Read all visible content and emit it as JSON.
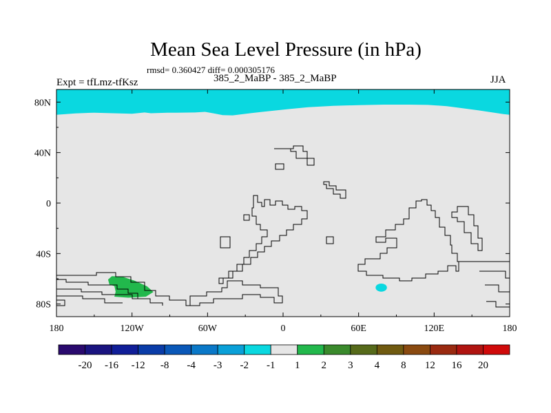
{
  "header": {
    "title": "Mean Sea Level Pressure (in hPa)",
    "stats": "rmsd= 0.360427 diff= 0.000305176",
    "experiment": "Expt = tfLmz-tfKsz",
    "subtitle": "385_2_MaBP - 385_2_MaBP",
    "season": "JJA"
  },
  "chart_data": {
    "type": "heatmap",
    "title": "Mean Sea Level Pressure (in hPa)",
    "subtitle": "385_2_MaBP - 385_2_MaBP",
    "experiment": "Expt = tfLmz-tfKsz",
    "season": "JJA",
    "rmsd": 0.360427,
    "diff": 0.000305176,
    "xlim": [
      -180,
      180
    ],
    "ylim": [
      -90,
      90
    ],
    "x_ticks": [
      {
        "value": -180,
        "label": "180"
      },
      {
        "value": -120,
        "label": "120W"
      },
      {
        "value": -60,
        "label": "60W"
      },
      {
        "value": 0,
        "label": "0"
      },
      {
        "value": 60,
        "label": "60E"
      },
      {
        "value": 120,
        "label": "120E"
      },
      {
        "value": 180,
        "label": "180"
      }
    ],
    "y_ticks": [
      {
        "value": 80,
        "label": "80N"
      },
      {
        "value": 40,
        "label": "40N"
      },
      {
        "value": 0,
        "label": "0"
      },
      {
        "value": -40,
        "label": "40S"
      },
      {
        "value": -80,
        "label": "80S"
      }
    ],
    "colorbar": {
      "levels": [
        "-20",
        "-16",
        "-12",
        "-8",
        "-4",
        "-3",
        "-2",
        "-1",
        "1",
        "2",
        "3",
        "4",
        "8",
        "12",
        "16",
        "20"
      ],
      "colors": [
        "#2a0a6e",
        "#1a1480",
        "#101e98",
        "#0a3ca8",
        "#0a58b8",
        "#0a78c8",
        "#0aa0d8",
        "#0ad8e0",
        "#e6e6e6",
        "#22b84c",
        "#3a8a2c",
        "#566a1a",
        "#705a10",
        "#8a4a10",
        "#9a2a10",
        "#b01410",
        "#d00a0a"
      ]
    },
    "background_value_range": [
      -1,
      1
    ],
    "regions": [
      {
        "name": "arctic-band",
        "value_range": [
          -2,
          -1
        ],
        "color": "#0ad8e0",
        "description_lat_lon": "north of ~70N across all longitudes",
        "boundary": [
          [
            -180,
            90
          ],
          [
            180,
            90
          ],
          [
            180,
            70
          ],
          [
            175,
            70.5
          ],
          [
            165,
            72
          ],
          [
            155,
            73.5
          ],
          [
            140,
            75.5
          ],
          [
            130,
            76.8
          ],
          [
            115,
            77.8
          ],
          [
            100,
            78
          ],
          [
            80,
            78
          ],
          [
            60,
            77.6
          ],
          [
            40,
            77
          ],
          [
            20,
            76
          ],
          [
            5,
            74.5
          ],
          [
            -10,
            73
          ],
          [
            -25,
            71.3
          ],
          [
            -40,
            69.5
          ],
          [
            -48,
            69.7
          ],
          [
            -55,
            71
          ],
          [
            -62,
            72.3
          ],
          [
            -70,
            71.8
          ],
          [
            -85,
            71.6
          ],
          [
            -92,
            71.6
          ],
          [
            -105,
            71.2
          ],
          [
            -110,
            71.8
          ],
          [
            -120,
            70.8
          ],
          [
            -135,
            71.2
          ],
          [
            -150,
            71.6
          ],
          [
            -165,
            71.1
          ],
          [
            -180,
            70
          ]
        ]
      },
      {
        "name": "indian-ocean-patch",
        "value_range": [
          -2,
          -1
        ],
        "color": "#0ad8e0",
        "center": [
          78,
          -67
        ],
        "radius_lon": 4.5,
        "radius_lat": 3.2
      },
      {
        "name": "south-pacific-patch",
        "value_range": [
          1,
          2
        ],
        "color": "#22b84c",
        "boundary": [
          [
            -136,
            -58
          ],
          [
            -128,
            -58.2
          ],
          [
            -118,
            -61.5
          ],
          [
            -108,
            -66
          ],
          [
            -103,
            -70.5
          ],
          [
            -109,
            -74.2
          ],
          [
            -123,
            -75
          ],
          [
            -134,
            -74.2
          ],
          [
            -133,
            -70.2
          ],
          [
            -134,
            -65.8
          ],
          [
            -138,
            -64.5
          ],
          [
            -139,
            -60.6
          ]
        ]
      }
    ]
  }
}
